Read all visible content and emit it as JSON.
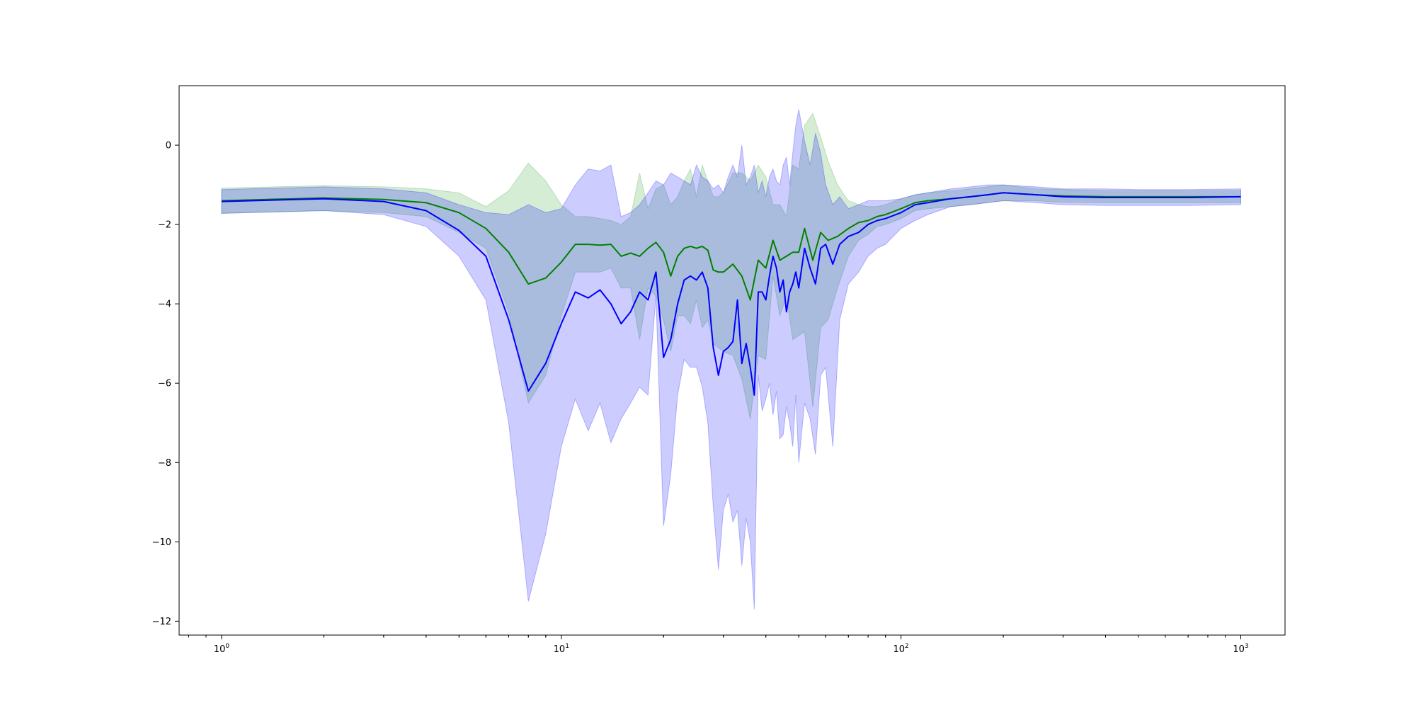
{
  "chart_data": {
    "type": "line",
    "title": "",
    "xlabel": "",
    "ylabel": "",
    "x_scale": "log",
    "xlim": [
      0.75,
      1350
    ],
    "ylim": [
      -12.35,
      1.5
    ],
    "grid": false,
    "legend": "none",
    "x_ticks": [
      {
        "value": 1,
        "base": "10",
        "exp": "0"
      },
      {
        "value": 10,
        "base": "10",
        "exp": "1"
      },
      {
        "value": 100,
        "base": "10",
        "exp": "2"
      },
      {
        "value": 1000,
        "base": "10",
        "exp": "3"
      }
    ],
    "y_ticks": [
      {
        "value": 0,
        "label": "0"
      },
      {
        "value": -2,
        "label": "−2"
      },
      {
        "value": -4,
        "label": "−4"
      },
      {
        "value": -6,
        "label": "−6"
      },
      {
        "value": -8,
        "label": "−8"
      },
      {
        "value": -10,
        "label": "−10"
      },
      {
        "value": -12,
        "label": "−12"
      }
    ],
    "series": [
      {
        "color": "#008000",
        "band_color": "#2ca02c",
        "x": [
          1,
          2,
          3,
          4,
          5,
          6,
          7,
          8,
          9,
          10,
          11,
          12,
          13,
          14,
          15,
          16,
          17,
          18,
          19,
          20,
          21,
          22,
          23,
          24,
          25,
          26,
          27,
          28,
          29,
          30,
          32,
          34,
          36,
          38,
          40,
          42,
          44,
          46,
          48,
          50,
          52,
          55,
          58,
          61,
          65,
          70,
          75,
          80,
          85,
          90,
          100,
          110,
          120,
          140,
          160,
          180,
          200,
          250,
          300,
          400,
          500,
          700,
          1000
        ],
        "mean": [
          -1.4,
          -1.33,
          -1.37,
          -1.45,
          -1.7,
          -2.1,
          -2.7,
          -3.5,
          -3.35,
          -2.95,
          -2.5,
          -2.5,
          -2.52,
          -2.5,
          -2.8,
          -2.72,
          -2.8,
          -2.6,
          -2.45,
          -2.7,
          -3.3,
          -2.8,
          -2.6,
          -2.55,
          -2.6,
          -2.55,
          -2.65,
          -3.15,
          -3.2,
          -3.2,
          -3.0,
          -3.3,
          -3.9,
          -2.9,
          -3.1,
          -2.4,
          -2.9,
          -2.8,
          -2.7,
          -2.7,
          -2.1,
          -2.9,
          -2.2,
          -2.4,
          -2.3,
          -2.1,
          -1.95,
          -1.9,
          -1.8,
          -1.75,
          -1.6,
          -1.45,
          -1.4,
          -1.35,
          -1.3,
          -1.25,
          -1.2,
          -1.25,
          -1.28,
          -1.3,
          -1.3,
          -1.3,
          -1.3
        ],
        "upper": [
          -1.08,
          -1.02,
          -1.05,
          -1.1,
          -1.2,
          -1.55,
          -1.15,
          -0.45,
          -0.9,
          -1.5,
          -1.8,
          -1.8,
          -1.85,
          -1.9,
          -2.0,
          -1.8,
          -0.7,
          -1.6,
          -1.1,
          -1.0,
          -1.5,
          -1.3,
          -0.9,
          -0.6,
          -1.3,
          -0.5,
          -0.9,
          -1.3,
          -1.3,
          -1.2,
          -0.7,
          -0.7,
          -0.9,
          -0.5,
          -0.8,
          -1.5,
          -1.5,
          -1.8,
          -0.5,
          -0.6,
          0.5,
          0.8,
          0.2,
          -0.4,
          -1.0,
          -1.4,
          -1.5,
          -1.55,
          -1.55,
          -1.5,
          -1.35,
          -1.25,
          -1.2,
          -1.15,
          -1.1,
          -1.05,
          -1.0,
          -1.1,
          -1.12,
          -1.15,
          -1.15,
          -1.15,
          -1.15
        ],
        "lower": [
          -1.72,
          -1.65,
          -1.7,
          -1.8,
          -2.2,
          -2.6,
          -4.2,
          -6.5,
          -5.8,
          -4.3,
          -3.2,
          -3.2,
          -3.2,
          -3.1,
          -3.6,
          -3.6,
          -4.9,
          -3.6,
          -3.8,
          -4.4,
          -5.2,
          -4.3,
          -4.3,
          -4.5,
          -3.9,
          -4.6,
          -4.4,
          -5.0,
          -5.1,
          -5.2,
          -5.3,
          -5.9,
          -6.9,
          -5.3,
          -5.4,
          -3.3,
          -4.3,
          -3.8,
          -4.9,
          -4.8,
          -4.7,
          -6.6,
          -4.6,
          -4.4,
          -3.6,
          -2.8,
          -2.4,
          -2.25,
          -2.05,
          -2.0,
          -1.85,
          -1.65,
          -1.6,
          -1.55,
          -1.5,
          -1.45,
          -1.4,
          -1.4,
          -1.44,
          -1.45,
          -1.45,
          -1.45,
          -1.45
        ]
      },
      {
        "color": "#0000ff",
        "band_color": "#0000ff",
        "x": [
          1,
          2,
          3,
          4,
          5,
          6,
          7,
          8,
          9,
          10,
          11,
          12,
          13,
          14,
          15,
          16,
          17,
          18,
          19,
          20,
          21,
          22,
          23,
          24,
          25,
          26,
          27,
          28,
          29,
          30,
          31,
          32,
          33,
          34,
          35,
          36,
          37,
          38,
          39,
          40,
          41,
          42,
          43,
          44,
          45,
          46,
          47,
          48,
          49,
          50,
          52,
          54,
          56,
          58,
          60,
          63,
          66,
          70,
          75,
          80,
          85,
          90,
          100,
          110,
          120,
          140,
          160,
          180,
          200,
          250,
          300,
          400,
          500,
          700,
          1000
        ],
        "mean": [
          -1.42,
          -1.35,
          -1.42,
          -1.65,
          -2.15,
          -2.8,
          -4.4,
          -6.2,
          -5.5,
          -4.5,
          -3.7,
          -3.85,
          -3.65,
          -4.0,
          -4.5,
          -4.2,
          -3.7,
          -3.9,
          -3.2,
          -5.35,
          -4.9,
          -4.0,
          -3.4,
          -3.3,
          -3.4,
          -3.2,
          -3.6,
          -5.1,
          -5.8,
          -5.2,
          -5.1,
          -4.95,
          -3.9,
          -5.5,
          -5.0,
          -5.6,
          -6.3,
          -3.7,
          -3.7,
          -3.9,
          -3.3,
          -2.8,
          -3.1,
          -3.7,
          -3.4,
          -4.2,
          -3.7,
          -3.5,
          -3.2,
          -3.6,
          -2.6,
          -3.1,
          -3.5,
          -2.6,
          -2.5,
          -3.0,
          -2.5,
          -2.3,
          -2.2,
          -2.0,
          -1.9,
          -1.85,
          -1.7,
          -1.5,
          -1.45,
          -1.35,
          -1.3,
          -1.25,
          -1.2,
          -1.25,
          -1.3,
          -1.32,
          -1.32,
          -1.32,
          -1.3
        ],
        "upper": [
          -1.12,
          -1.05,
          -1.1,
          -1.2,
          -1.5,
          -1.7,
          -1.75,
          -1.5,
          -1.7,
          -1.6,
          -1.0,
          -0.6,
          -0.65,
          -0.5,
          -1.8,
          -1.7,
          -1.5,
          -1.2,
          -0.9,
          -1.0,
          -0.7,
          -0.8,
          -0.9,
          -1.0,
          -0.5,
          -0.8,
          -0.9,
          -1.1,
          -1.0,
          -1.2,
          -0.8,
          -0.5,
          -0.8,
          0.0,
          -1.0,
          -0.8,
          -0.5,
          -1.2,
          -0.9,
          -1.3,
          -0.8,
          -0.6,
          -0.9,
          -1.0,
          -0.5,
          -0.3,
          -1.0,
          -0.2,
          0.5,
          0.9,
          0.1,
          -0.5,
          0.3,
          -0.2,
          -1.0,
          -1.5,
          -1.3,
          -1.6,
          -1.5,
          -1.4,
          -1.4,
          -1.4,
          -1.35,
          -1.25,
          -1.2,
          -1.1,
          -1.05,
          -1.0,
          -1.0,
          -1.05,
          -1.1,
          -1.1,
          -1.12,
          -1.12,
          -1.1
        ],
        "lower": [
          -1.72,
          -1.65,
          -1.75,
          -2.05,
          -2.8,
          -3.9,
          -7.0,
          -11.5,
          -9.8,
          -7.6,
          -6.4,
          -7.2,
          -6.5,
          -7.5,
          -6.9,
          -6.5,
          -6.1,
          -6.3,
          -3.8,
          -9.6,
          -8.3,
          -6.3,
          -5.4,
          -5.6,
          -5.6,
          -6.1,
          -7.0,
          -9.1,
          -10.7,
          -9.2,
          -8.8,
          -9.5,
          -9.2,
          -10.6,
          -9.4,
          -10.0,
          -11.7,
          -5.8,
          -6.7,
          -6.4,
          -6.0,
          -6.8,
          -6.2,
          -7.4,
          -7.3,
          -6.6,
          -7.0,
          -7.6,
          -6.3,
          -8.0,
          -6.5,
          -6.9,
          -7.8,
          -5.8,
          -5.6,
          -7.6,
          -4.4,
          -3.5,
          -3.2,
          -2.8,
          -2.6,
          -2.5,
          -2.1,
          -1.9,
          -1.75,
          -1.55,
          -1.5,
          -1.45,
          -1.4,
          -1.45,
          -1.5,
          -1.52,
          -1.52,
          -1.52,
          -1.5
        ]
      }
    ]
  }
}
